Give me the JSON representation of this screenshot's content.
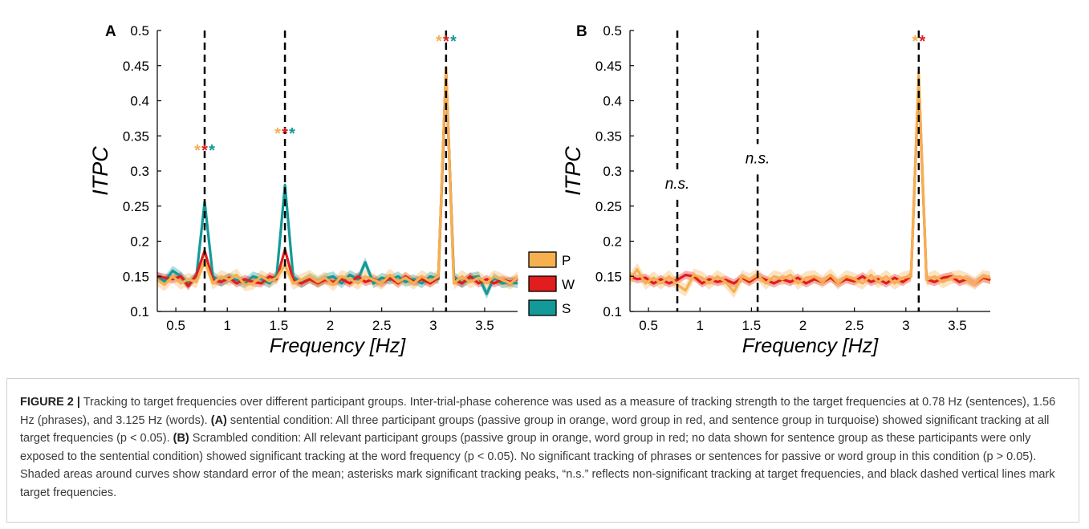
{
  "palette": {
    "P": "#f6b04f",
    "W": "#e21d1d",
    "S": "#139a98",
    "axis": "#000000"
  },
  "chart_data": [
    {
      "panel": "A",
      "type": "line",
      "xlabel": "Frequency [Hz]",
      "ylabel": "ITPC",
      "xlim": [
        0.32,
        3.82
      ],
      "ylim": [
        0.1,
        0.5
      ],
      "xticks": [
        0.5,
        1,
        1.5,
        2,
        2.5,
        3,
        3.5
      ],
      "xtick_labels": [
        "0.5",
        "1",
        "1.5",
        "2",
        "2.5",
        "3",
        "3.5"
      ],
      "yticks": [
        0.1,
        0.15,
        0.2,
        0.25,
        0.3,
        0.35,
        0.4,
        0.45,
        0.5
      ],
      "ytick_labels": [
        "0.1",
        "0.15",
        "0.2",
        "0.25",
        "0.3",
        "0.35",
        "0.4",
        "0.45",
        "0.5"
      ],
      "grid": false,
      "target_frequencies": [
        0.78,
        1.56,
        3.125
      ],
      "annotations": [
        {
          "x": 0.78,
          "y": 0.322,
          "text": "*",
          "colors": [
            "P",
            "W",
            "S"
          ]
        },
        {
          "x": 1.56,
          "y": 0.346,
          "text": "*",
          "colors": [
            "P",
            "W",
            "S"
          ]
        },
        {
          "x": 3.125,
          "y": 0.477,
          "text": "*",
          "colors": [
            "P",
            "W",
            "S"
          ]
        }
      ],
      "x": [
        0.32,
        0.39,
        0.47,
        0.55,
        0.62,
        0.7,
        0.78,
        0.86,
        0.94,
        1.02,
        1.09,
        1.17,
        1.25,
        1.33,
        1.41,
        1.48,
        1.56,
        1.64,
        1.72,
        1.8,
        1.88,
        1.95,
        2.03,
        2.11,
        2.19,
        2.27,
        2.34,
        2.42,
        2.5,
        2.58,
        2.66,
        2.73,
        2.81,
        2.89,
        2.97,
        3.05,
        3.125,
        3.2,
        3.28,
        3.36,
        3.44,
        3.52,
        3.59,
        3.67,
        3.75,
        3.82
      ],
      "series": [
        {
          "name": "S",
          "color_key": "S",
          "values": [
            0.15,
            0.143,
            0.158,
            0.15,
            0.14,
            0.15,
            0.256,
            0.15,
            0.142,
            0.148,
            0.145,
            0.14,
            0.15,
            0.146,
            0.14,
            0.152,
            0.28,
            0.15,
            0.14,
            0.148,
            0.142,
            0.147,
            0.15,
            0.14,
            0.152,
            0.146,
            0.17,
            0.14,
            0.148,
            0.145,
            0.15,
            0.142,
            0.146,
            0.14,
            0.15,
            0.146,
            0.443,
            0.15,
            0.14,
            0.148,
            0.15,
            0.125,
            0.148,
            0.14,
            0.142,
            0.14
          ],
          "sem": 0.007
        },
        {
          "name": "W",
          "color_key": "W",
          "values": [
            0.15,
            0.148,
            0.146,
            0.15,
            0.136,
            0.152,
            0.186,
            0.145,
            0.142,
            0.148,
            0.14,
            0.146,
            0.142,
            0.14,
            0.15,
            0.146,
            0.188,
            0.145,
            0.14,
            0.146,
            0.14,
            0.145,
            0.142,
            0.146,
            0.14,
            0.15,
            0.142,
            0.146,
            0.14,
            0.148,
            0.14,
            0.15,
            0.142,
            0.146,
            0.14,
            0.148,
            0.445,
            0.145,
            0.14,
            0.15,
            0.14,
            0.146,
            0.14,
            0.145,
            0.142,
            0.146
          ],
          "sem": 0.006
        },
        {
          "name": "P",
          "color_key": "P",
          "values": [
            0.145,
            0.138,
            0.15,
            0.14,
            0.146,
            0.142,
            0.172,
            0.14,
            0.15,
            0.145,
            0.152,
            0.138,
            0.14,
            0.15,
            0.143,
            0.148,
            0.166,
            0.14,
            0.145,
            0.15,
            0.142,
            0.148,
            0.138,
            0.15,
            0.146,
            0.14,
            0.15,
            0.145,
            0.14,
            0.152,
            0.142,
            0.148,
            0.14,
            0.15,
            0.143,
            0.15,
            0.448,
            0.14,
            0.15,
            0.142,
            0.148,
            0.14,
            0.15,
            0.145,
            0.14,
            0.148
          ],
          "sem": 0.009
        }
      ]
    },
    {
      "panel": "B",
      "type": "line",
      "xlabel": "Frequency [Hz]",
      "ylabel": "ITPC",
      "xlim": [
        0.32,
        3.82
      ],
      "ylim": [
        0.1,
        0.5
      ],
      "xticks": [
        0.5,
        1,
        1.5,
        2,
        2.5,
        3,
        3.5
      ],
      "xtick_labels": [
        "0.5",
        "1",
        "1.5",
        "2",
        "2.5",
        "3",
        "3.5"
      ],
      "yticks": [
        0.1,
        0.15,
        0.2,
        0.25,
        0.3,
        0.35,
        0.4,
        0.45,
        0.5
      ],
      "ytick_labels": [
        "0.1",
        "0.15",
        "0.2",
        "0.25",
        "0.3",
        "0.35",
        "0.4",
        "0.45",
        "0.5"
      ],
      "grid": false,
      "target_frequencies": [
        0.78,
        1.56,
        3.125
      ],
      "annotations": [
        {
          "x": 0.78,
          "y": 0.275,
          "text": "n.s."
        },
        {
          "x": 1.56,
          "y": 0.311,
          "text": "n.s."
        },
        {
          "x": 3.125,
          "y": 0.477,
          "text": "*",
          "colors": [
            "P",
            "W"
          ]
        }
      ],
      "x": [
        0.32,
        0.39,
        0.47,
        0.55,
        0.62,
        0.7,
        0.78,
        0.86,
        0.94,
        1.02,
        1.09,
        1.17,
        1.25,
        1.33,
        1.41,
        1.48,
        1.56,
        1.64,
        1.72,
        1.8,
        1.88,
        1.95,
        2.03,
        2.11,
        2.19,
        2.27,
        2.34,
        2.42,
        2.5,
        2.58,
        2.66,
        2.73,
        2.81,
        2.89,
        2.97,
        3.05,
        3.125,
        3.2,
        3.28,
        3.36,
        3.44,
        3.52,
        3.59,
        3.67,
        3.75,
        3.82
      ],
      "series": [
        {
          "name": "W",
          "color_key": "W",
          "values": [
            0.15,
            0.146,
            0.148,
            0.14,
            0.146,
            0.14,
            0.145,
            0.152,
            0.15,
            0.14,
            0.146,
            0.142,
            0.145,
            0.14,
            0.148,
            0.142,
            0.15,
            0.145,
            0.14,
            0.146,
            0.142,
            0.148,
            0.14,
            0.146,
            0.142,
            0.148,
            0.14,
            0.146,
            0.143,
            0.15,
            0.142,
            0.146,
            0.14,
            0.148,
            0.142,
            0.15,
            0.433,
            0.146,
            0.142,
            0.148,
            0.15,
            0.142,
            0.146,
            0.14,
            0.148,
            0.145
          ],
          "sem": 0.006
        },
        {
          "name": "P",
          "color_key": "P",
          "values": [
            0.145,
            0.16,
            0.14,
            0.148,
            0.14,
            0.15,
            0.138,
            0.13,
            0.152,
            0.148,
            0.14,
            0.15,
            0.142,
            0.128,
            0.15,
            0.145,
            0.152,
            0.14,
            0.15,
            0.146,
            0.152,
            0.14,
            0.148,
            0.15,
            0.142,
            0.152,
            0.14,
            0.15,
            0.146,
            0.14,
            0.152,
            0.142,
            0.15,
            0.14,
            0.148,
            0.15,
            0.44,
            0.145,
            0.15,
            0.142,
            0.148,
            0.15,
            0.146,
            0.14,
            0.15,
            0.148
          ],
          "sem": 0.009
        }
      ]
    }
  ],
  "legend": [
    {
      "key": "P",
      "label": "P"
    },
    {
      "key": "W",
      "label": "W"
    },
    {
      "key": "S",
      "label": "S"
    }
  ],
  "caption": {
    "figure_label": "FIGURE 2 |",
    "part1": " Tracking to target frequencies over different participant groups. Inter-trial-phase coherence was used as a measure of tracking strength to the target frequencies at 0.78 Hz (sentences), 1.56 Hz (phrases), and 3.125 Hz (words). ",
    "label_a": "(A)",
    "part2": " sentential condition: All three participant groups (passive group in orange, word group in red, and sentence group in turquoise) showed significant tracking at all target frequencies (p < 0.05). ",
    "label_b": "(B)",
    "part3": " Scrambled condition: All relevant participant groups (passive group in orange, word group in red; no data shown for sentence group as these participants were only exposed to the sentential condition) showed significant tracking at the word frequency (p < 0.05). No significant tracking of phrases or sentences for passive or word group in this condition (p > 0.05). Shaded areas around curves show standard error of the mean; asterisks mark significant tracking peaks, “n.s.” reflects non-significant tracking at target frequencies, and black dashed vertical lines mark target frequencies."
  }
}
